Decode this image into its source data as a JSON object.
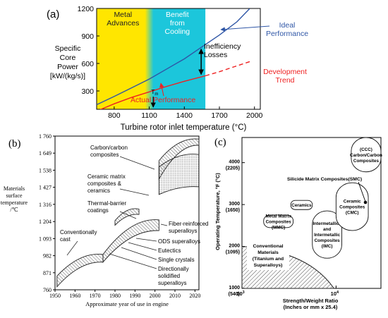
{
  "chart_data": [
    {
      "panel": "(a)",
      "type": "line",
      "xlabel": "Turbine rotor inlet temperature (°C)",
      "ylabel": [
        "Specific",
        "Core",
        "Power",
        "[kW/(kg/s)]"
      ],
      "xlim": [
        650,
        2050
      ],
      "ylim": [
        100,
        1200
      ],
      "xticks": [
        "800",
        "1100",
        "1400",
        "1700",
        "2000"
      ],
      "yticks": [
        "300",
        "600",
        "900",
        "1200"
      ],
      "regions": [
        {
          "label": [
            "Metal",
            "Advances"
          ],
          "x": [
            650,
            1100
          ],
          "color": "#ffe600"
        },
        {
          "label": [
            "Benefit",
            "from",
            "Cooling"
          ],
          "x": [
            1100,
            1580
          ],
          "color": "#1cc6db"
        }
      ],
      "series": [
        {
          "name": [
            "Ideal",
            "Performance"
          ],
          "color": "#2f56a6",
          "x": [
            650,
            800,
            950,
            1100,
            1250,
            1400,
            1550,
            1700,
            1850,
            1960
          ],
          "y": [
            150,
            240,
            335,
            430,
            540,
            650,
            780,
            910,
            1055,
            1200
          ]
        },
        {
          "name": [
            "Actual Performance"
          ],
          "color": "#ee2222",
          "x": [
            650,
            800,
            950,
            1100,
            1250,
            1400,
            1580
          ],
          "y": [
            80,
            160,
            230,
            290,
            350,
            405,
            465
          ]
        },
        {
          "name": [
            "Development",
            "Trend"
          ],
          "color": "#ee2222",
          "dashed": true,
          "x": [
            1580,
            1700,
            1830,
            1960
          ],
          "y": [
            465,
            510,
            565,
            620
          ]
        }
      ],
      "annotations": [
        {
          "text": [
            "Inefficiency",
            "Losses"
          ],
          "x": 1580,
          "y_from": 465,
          "y_to": 780
        },
        {
          "text": "T",
          "sub": "m",
          "x": 1140
        }
      ]
    },
    {
      "panel": "(b)",
      "type": "area",
      "xlabel": "Approximate year of use in engine",
      "ylabel": [
        "Materials",
        "surface",
        "temperature",
        "/℃"
      ],
      "xlim": [
        1950,
        2022
      ],
      "ylim": [
        760,
        1760
      ],
      "xticks": [
        "1950",
        "1960",
        "1970",
        "1980",
        "1990",
        "2000",
        "2010",
        "2020"
      ],
      "yticks": [
        "760",
        "871",
        "982",
        "1 093",
        "1 204",
        "1 316",
        "1 427",
        "1 538",
        "1 649",
        "1 760"
      ],
      "bands": [
        {
          "name": [
            "Carbon/carbon",
            "composites"
          ],
          "x": [
            2002,
            2022
          ],
          "lower": [
            1480,
            1700
          ],
          "upper": [
            1600,
            1740
          ]
        },
        {
          "name": [
            "Ceramic matrix",
            "composites &",
            "ceramics"
          ],
          "x": [
            2002,
            2022
          ],
          "lower": [
            1380,
            1430
          ],
          "upper": [
            1560,
            1640
          ]
        },
        {
          "name": [
            "Thermal-barrier",
            "coatings"
          ],
          "x": [
            1980,
            1992
          ],
          "lower": [
            1180,
            1250
          ],
          "upper": [
            1210,
            1285
          ]
        },
        {
          "name": [
            "Conventionally",
            "cast"
          ],
          "x": [
            1951,
            1974
          ],
          "lower": [
            780,
            940
          ],
          "upper": [
            850,
            990
          ]
        },
        {
          "name": [
            "Fiber-reinforced",
            "superalloys"
          ],
          "x": [
            1974,
            2002
          ],
          "lower": [
            940,
            1145
          ],
          "upper": [
            990,
            1215
          ]
        }
      ],
      "labels": [
        [
          "ODS superalloys"
        ],
        [
          "Eutectics"
        ],
        [
          "Single crystals"
        ],
        [
          "Directionally",
          "solidified",
          "superalloys"
        ]
      ]
    },
    {
      "panel": "(c)",
      "type": "scatter",
      "xlabel": [
        "Strength/Weight Ratio",
        "(Inches or mm x 25.4)"
      ],
      "ylabel": "Operating Temperature, °F (°C)",
      "xscale": "log",
      "xlim": [
        1000,
        30000
      ],
      "ylim": [
        1000,
        4600
      ],
      "xticks": [
        "10",
        "10"
      ],
      "xtick_exp": [
        "3",
        "4"
      ],
      "yticks": [
        [
          "1000",
          "(540)"
        ],
        [
          "2000",
          "(1095)"
        ],
        [
          "3000",
          "(1650)"
        ],
        [
          "4000",
          "(2205)"
        ]
      ],
      "regions": [
        {
          "name": [
            "Conventional",
            "Materials",
            "(Titanium and",
            "Superalloys)"
          ],
          "hatched": true
        },
        {
          "name": [
            "Metal Matrix",
            "Composites",
            "(MMC)"
          ],
          "x": [
            1700,
            3500
          ],
          "y": [
            2450,
            2750
          ]
        },
        {
          "name": [
            "Ceramics"
          ],
          "x": [
            3300,
            5600
          ],
          "y": [
            2880,
            3100
          ]
        },
        {
          "name": [
            "Intermetallics",
            "and",
            "Intermetallic",
            "Composites",
            "(IMC)"
          ],
          "x": [
            5600,
            11500
          ],
          "y": [
            1720,
            2850
          ]
        },
        {
          "name": [
            "Ceramic",
            "Composites",
            "(CMC)"
          ],
          "x": [
            10000,
            22000
          ],
          "y": [
            2380,
            3520
          ]
        },
        {
          "name": [
            "(CCC)",
            "Carbon/Carbon",
            "Composites"
          ],
          "x": [
            14500,
            30000
          ],
          "y": [
            3780,
            4600
          ]
        }
      ],
      "annotations": [
        {
          "text": "Silicide Matrix Composites(SMC)"
        }
      ]
    }
  ]
}
